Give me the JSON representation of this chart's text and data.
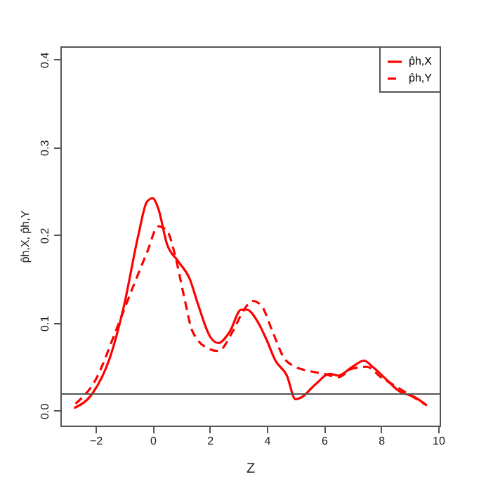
{
  "chart_data": {
    "type": "line",
    "xlabel": "Z",
    "ylabel": "p̂h,X, p̂h,Y",
    "xlim": [
      -3.23,
      10.05
    ],
    "ylim": [
      -0.017,
      0.415
    ],
    "xticks": [
      -2,
      0,
      2,
      4,
      6,
      8,
      10
    ],
    "yticks": [
      {
        "value": 0,
        "label": "0.0"
      },
      0.1,
      0.2,
      0.3,
      0.4
    ],
    "grid": false,
    "legend": "top right",
    "marker": "none",
    "series": [
      {
        "name": "p̂h,X",
        "color": "#ff0000",
        "line_style": "solid",
        "x": [
          -2.75,
          -2.1,
          -1.5,
          -1,
          -0.5,
          -0.2,
          0,
          0.2,
          0.5,
          0.9,
          1.3,
          1.6,
          2,
          2.3,
          2.7,
          3.1,
          3.3,
          3.7,
          4,
          4.3,
          4.7,
          5,
          5.2,
          5.7,
          6.2,
          6.5,
          7,
          7.4,
          7.7,
          8.2,
          8.6,
          9.2,
          9.6
        ],
        "values": [
          0.003,
          0.02,
          0.06,
          0.12,
          0.2,
          0.238,
          0.242,
          0.23,
          0.19,
          0.17,
          0.15,
          0.12,
          0.085,
          0.077,
          0.09,
          0.115,
          0.115,
          0.1,
          0.08,
          0.057,
          0.04,
          0.013,
          0.015,
          0.03,
          0.042,
          0.04,
          0.05,
          0.057,
          0.05,
          0.035,
          0.023,
          0.015,
          0.006
        ]
      },
      {
        "name": "p̂h,Y",
        "color": "#ff0000",
        "line_style": "dashed",
        "x": [
          -2.7,
          -2,
          -1.3,
          -0.7,
          -0.2,
          0.2,
          0.5,
          0.8,
          1.1,
          1.4,
          2,
          2.3,
          2.8,
          3.2,
          3.5,
          3.8,
          4.2,
          4.6,
          5,
          5.5,
          6,
          6.5,
          7,
          7.5,
          8,
          8.5,
          9,
          9.6
        ],
        "values": [
          0.008,
          0.035,
          0.09,
          0.14,
          0.18,
          0.21,
          0.205,
          0.175,
          0.13,
          0.09,
          0.07,
          0.068,
          0.09,
          0.115,
          0.125,
          0.12,
          0.09,
          0.06,
          0.05,
          0.045,
          0.042,
          0.038,
          0.048,
          0.05,
          0.038,
          0.028,
          0.018,
          0.006
        ]
      }
    ],
    "ref_lines": [
      {
        "axis": "y",
        "value": 0.019,
        "color": "#555555",
        "line_style": "solid"
      }
    ]
  }
}
